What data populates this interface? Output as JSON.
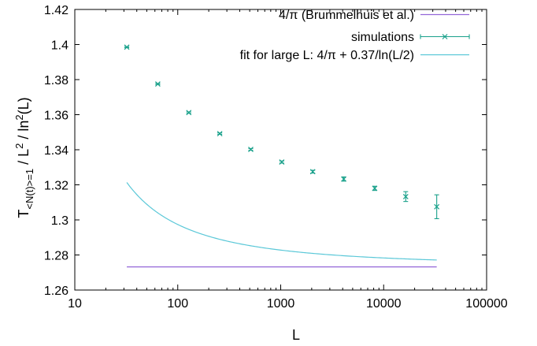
{
  "chart_data": {
    "type": "line",
    "xlabel": "L",
    "ylabel": {
      "T": "T",
      "sub": "<N(t)>=1",
      "mid": " / L",
      "sup1": "2",
      "mid2": " / ln",
      "sup2": "2",
      "tail": "(L)"
    },
    "x_scale": "log",
    "xlim": [
      10,
      100000
    ],
    "ylim": [
      1.26,
      1.42
    ],
    "grid": false,
    "legend_position": "top-right",
    "x_ticks": [
      {
        "value": 10,
        "label": "10"
      },
      {
        "value": 100,
        "label": "100"
      },
      {
        "value": 1000,
        "label": "1000"
      },
      {
        "value": 10000,
        "label": "10000"
      },
      {
        "value": 100000,
        "label": "100000"
      }
    ],
    "y_ticks": [
      {
        "value": 1.26,
        "label": "1.26"
      },
      {
        "value": 1.28,
        "label": "1.28"
      },
      {
        "value": 1.3,
        "label": "1.3"
      },
      {
        "value": 1.32,
        "label": "1.32"
      },
      {
        "value": 1.34,
        "label": "1.34"
      },
      {
        "value": 1.36,
        "label": "1.36"
      },
      {
        "value": 1.38,
        "label": "1.38"
      },
      {
        "value": 1.4,
        "label": "1.4"
      },
      {
        "value": 1.42,
        "label": "1.42"
      }
    ],
    "series": [
      {
        "name": "4/π  (Brummelhuis et al.)",
        "kind": "hline",
        "color": "#9467d8",
        "y": 1.2732,
        "x_range": [
          32,
          32768
        ]
      },
      {
        "name": "simulations",
        "kind": "points-errorbars",
        "color": "#1aa18b",
        "points": [
          {
            "x": 32,
            "y": 1.3985,
            "err": 0.0003
          },
          {
            "x": 64,
            "y": 1.3775,
            "err": 0.0003
          },
          {
            "x": 128,
            "y": 1.3612,
            "err": 0.0004
          },
          {
            "x": 256,
            "y": 1.3492,
            "err": 0.0004
          },
          {
            "x": 512,
            "y": 1.3402,
            "err": 0.0005
          },
          {
            "x": 1024,
            "y": 1.333,
            "err": 0.0006
          },
          {
            "x": 2048,
            "y": 1.3275,
            "err": 0.0008
          },
          {
            "x": 4096,
            "y": 1.3233,
            "err": 0.0012
          },
          {
            "x": 8192,
            "y": 1.318,
            "err": 0.0012
          },
          {
            "x": 16384,
            "y": 1.3133,
            "err": 0.0028
          },
          {
            "x": 32768,
            "y": 1.3075,
            "err": 0.0068
          }
        ]
      },
      {
        "name": "fit for large L:  4/π + 0.37/ln(L/2)",
        "kind": "function",
        "color": "#5bc8d8",
        "a": 1.2732,
        "b": 0.37,
        "x_range": [
          32,
          32768
        ]
      }
    ]
  }
}
